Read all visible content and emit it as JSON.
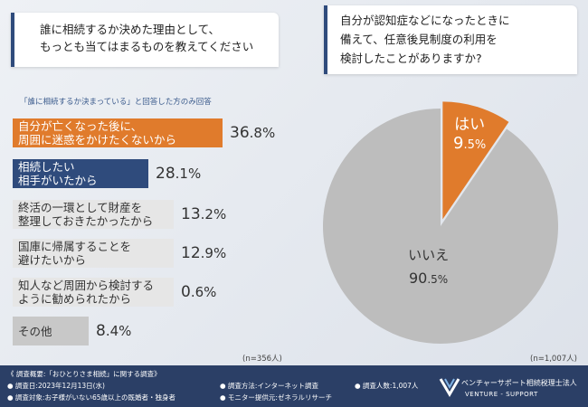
{
  "left_question": {
    "line1": "誰に相続するか決めた理由として、",
    "line2": "もっとも当てはまるものを教えてください"
  },
  "left_subnote": "「誰に相続するか決まっている」と回答した方のみ回答",
  "right_question": {
    "line1": "自分が認知症などになったときに",
    "line2": "備えて、任意後見制度の利用を",
    "line3": "検討したことがありますか?"
  },
  "chart_data": [
    {
      "type": "bar",
      "orientation": "horizontal",
      "categories": [
        [
          "自分が亡くなった後に、",
          "周囲に迷惑をかけたくないから"
        ],
        [
          "相続したい",
          "相手がいたから"
        ],
        [
          "終活の一環として財産を",
          "整理しておきたかったから"
        ],
        [
          "国庫に帰属することを",
          "避けたいから"
        ],
        [
          "知人など周囲から検討する",
          "ように勧められたから"
        ],
        [
          "その他"
        ]
      ],
      "values": [
        36.8,
        28.1,
        13.2,
        12.9,
        0.6,
        8.4
      ],
      "value_labels": [
        {
          "int": "36",
          "dec": ".8%"
        },
        {
          "int": "28",
          "dec": ".1%"
        },
        {
          "int": "13",
          "dec": ".2%"
        },
        {
          "int": "12",
          "dec": ".9%"
        },
        {
          "int": "0",
          "dec": ".6%"
        },
        {
          "int": "8",
          "dec": ".4%"
        }
      ],
      "bar_colors": [
        "#e07b2c",
        "#2f4b7c",
        "#e6e6e6",
        "#e6e6e6",
        "#e6e6e6",
        "#c8c8c8"
      ],
      "label_colors": [
        "#ffffff",
        "#ffffff",
        "#333333",
        "#333333",
        "#333333",
        "#333333"
      ],
      "n_label": "(n=356人)"
    },
    {
      "type": "pie",
      "categories": [
        "はい",
        "いいえ"
      ],
      "values": [
        9.5,
        90.5
      ],
      "value_labels": [
        {
          "int": "9",
          "dec": ".5%"
        },
        {
          "int": "90",
          "dec": ".5%"
        }
      ],
      "colors": [
        "#e07b2c",
        "#bdbdbd"
      ],
      "n_label": "(n=1,007人)"
    }
  ],
  "footer": {
    "overview": "《 調査概要:「おひとりさま相続」に関する調査》",
    "date": "● 調査日:2023年12月13日(水)",
    "target": "● 調査対象:お子様がいない65歳以上の既婚者・独身者",
    "method": "● 調査方法:インターネット調査",
    "provider": "● モニター提供元:ゼネラルリサーチ",
    "count": "● 調査人数:1,007人",
    "brand_name": "ベンチャーサポート相続税理士法人",
    "brand_en": "VENTURE - SUPPORT"
  }
}
